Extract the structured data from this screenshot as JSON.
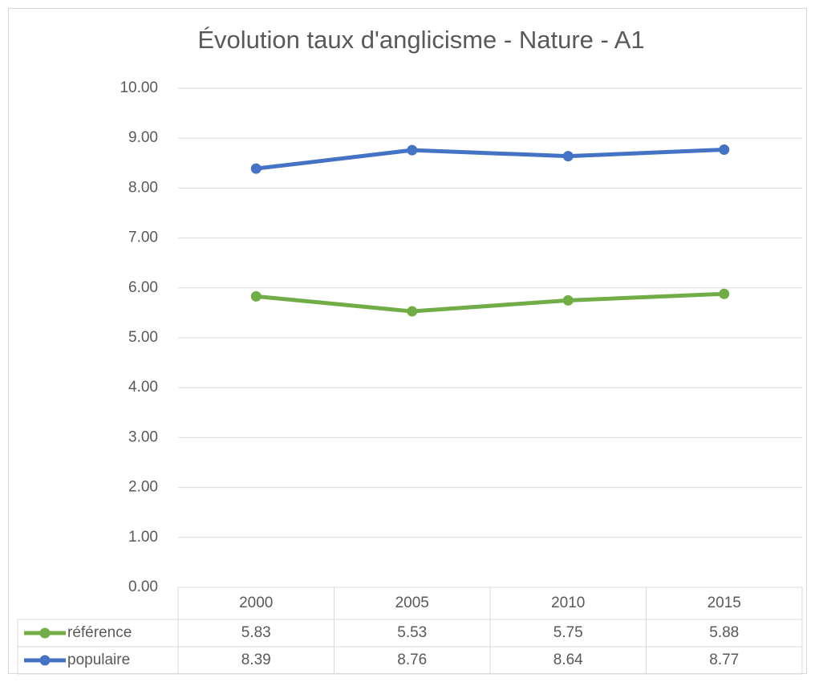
{
  "chart_data": {
    "type": "line",
    "title": "Évolution taux d'anglicisme - Nature - A1",
    "categories": [
      "2000",
      "2005",
      "2010",
      "2015"
    ],
    "series": [
      {
        "name": "référence",
        "color": "#70ad47",
        "values": [
          5.83,
          5.53,
          5.75,
          5.88
        ]
      },
      {
        "name": "populaire",
        "color": "#4472c4",
        "values": [
          8.39,
          8.76,
          8.64,
          8.77
        ]
      }
    ],
    "ylim": [
      0,
      10
    ],
    "yticks": [
      {
        "value": 0,
        "label": "0.00"
      },
      {
        "value": 1,
        "label": "1.00"
      },
      {
        "value": 2,
        "label": "2.00"
      },
      {
        "value": 3,
        "label": "3.00"
      },
      {
        "value": 4,
        "label": "4.00"
      },
      {
        "value": 5,
        "label": "5.00"
      },
      {
        "value": 6,
        "label": "6.00"
      },
      {
        "value": 7,
        "label": "7.00"
      },
      {
        "value": 8,
        "label": "8.00"
      },
      {
        "value": 9,
        "label": "9.00"
      },
      {
        "value": 10,
        "label": "10.00"
      }
    ],
    "grid": true,
    "data_table": true
  }
}
